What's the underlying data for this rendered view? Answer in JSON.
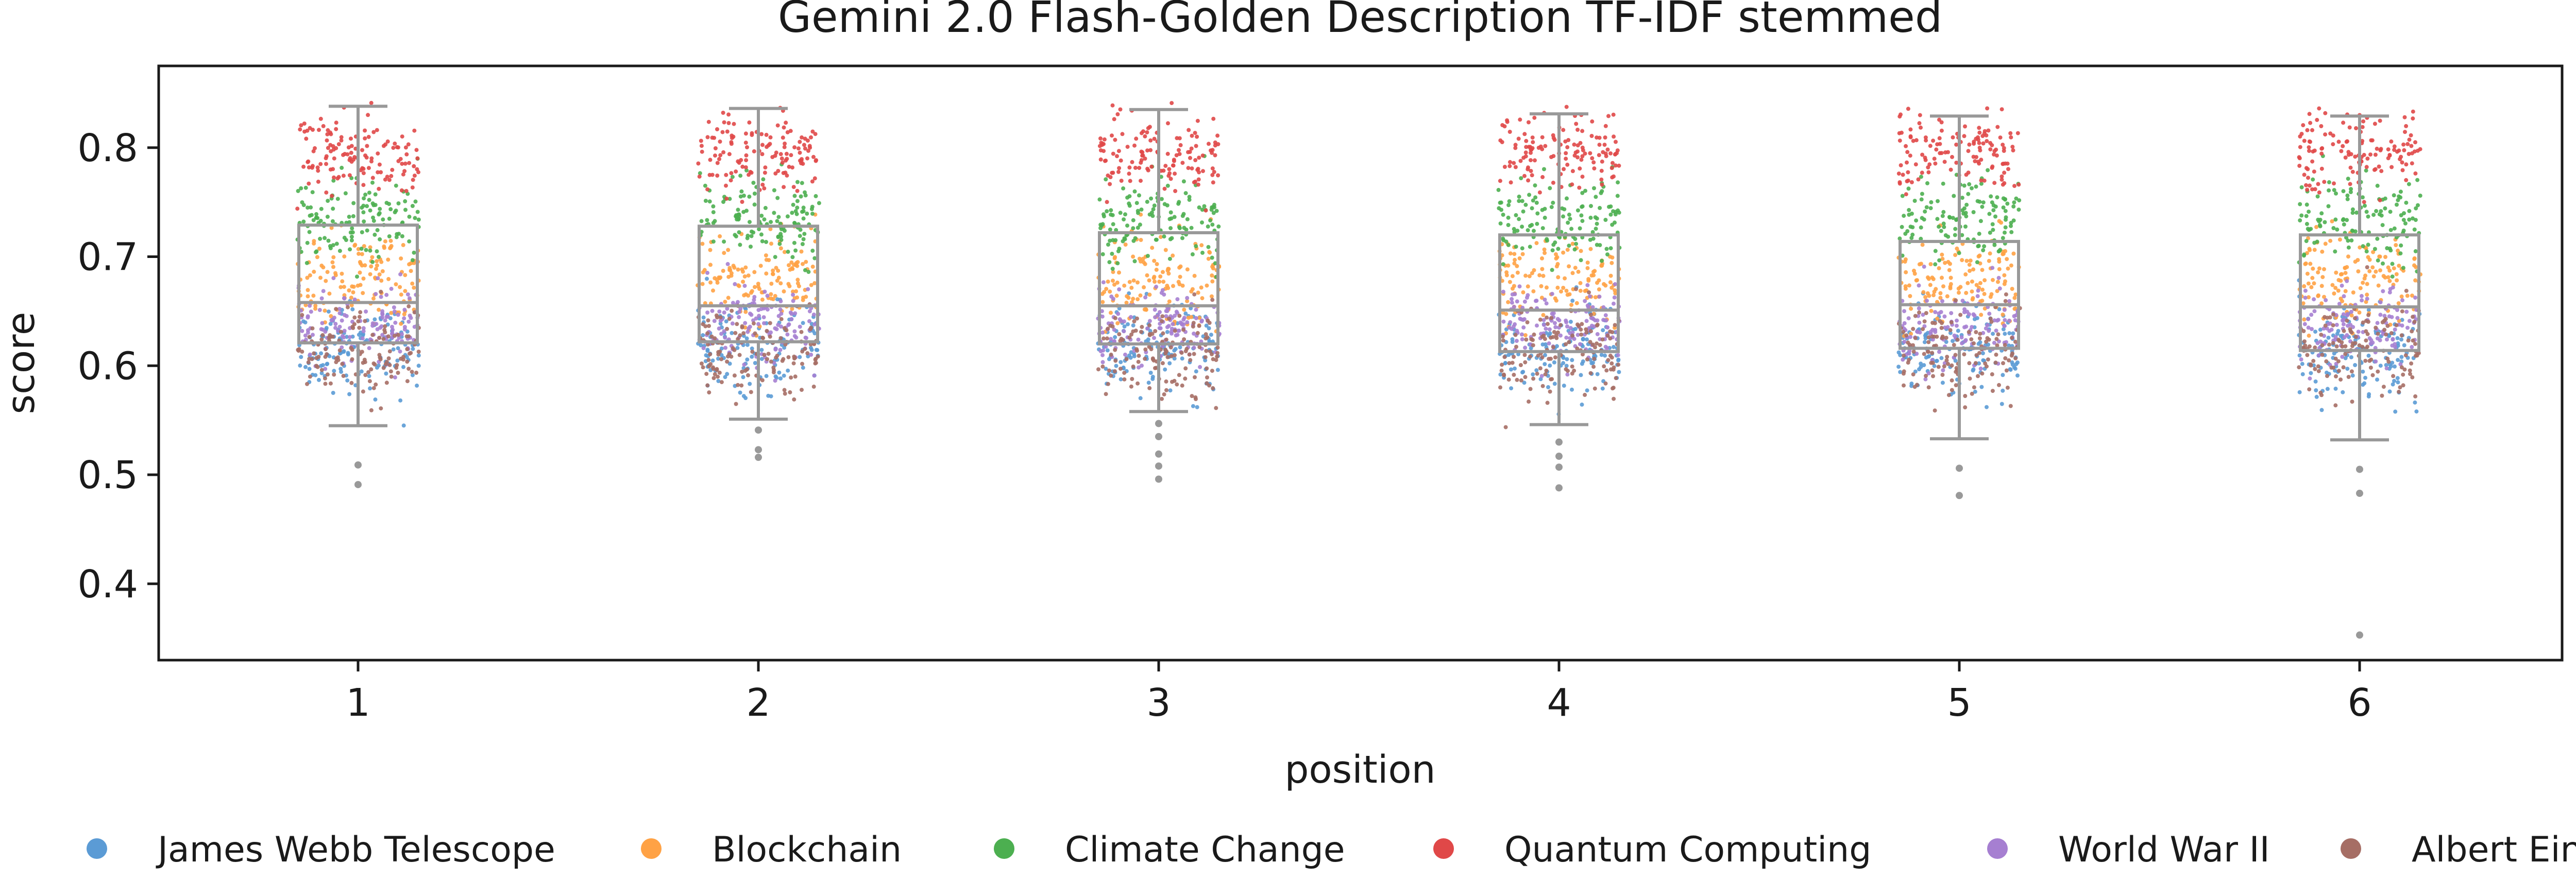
{
  "chart_data": {
    "type": "scatter",
    "subtype": "box-plot with jittered strip points",
    "title": "Gemini 2.0 Flash-Golden Description TF-IDF stemmed",
    "xlabel": "position",
    "ylabel": "score",
    "categories": [
      "1",
      "2",
      "3",
      "4",
      "5",
      "6"
    ],
    "ylim": [
      0.33,
      0.875
    ],
    "yticks": [
      "0.4",
      "0.5",
      "0.6",
      "0.7",
      "0.8"
    ],
    "grid": false,
    "legend_position": "bottom",
    "box_color": "#999999",
    "boxes": [
      {
        "position": "1",
        "whisker_low": 0.545,
        "q1": 0.621,
        "median": 0.658,
        "q3": 0.729,
        "whisker_high": 0.838,
        "outliers": [
          0.509,
          0.491
        ]
      },
      {
        "position": "2",
        "whisker_low": 0.551,
        "q1": 0.622,
        "median": 0.655,
        "q3": 0.728,
        "whisker_high": 0.836,
        "outliers": [
          0.541,
          0.523,
          0.516
        ]
      },
      {
        "position": "3",
        "whisker_low": 0.558,
        "q1": 0.62,
        "median": 0.655,
        "q3": 0.722,
        "whisker_high": 0.835,
        "outliers": [
          0.547,
          0.535,
          0.519,
          0.508,
          0.496
        ]
      },
      {
        "position": "4",
        "whisker_low": 0.546,
        "q1": 0.613,
        "median": 0.651,
        "q3": 0.72,
        "whisker_high": 0.831,
        "outliers": [
          0.53,
          0.517,
          0.507,
          0.488
        ]
      },
      {
        "position": "5",
        "whisker_low": 0.533,
        "q1": 0.616,
        "median": 0.656,
        "q3": 0.714,
        "whisker_high": 0.829,
        "outliers": [
          0.506,
          0.481
        ]
      },
      {
        "position": "6",
        "whisker_low": 0.532,
        "q1": 0.614,
        "median": 0.654,
        "q3": 0.72,
        "whisker_high": 0.829,
        "outliers": [
          0.505,
          0.483,
          0.353
        ]
      }
    ],
    "series": [
      {
        "name": "James Webb Telescope",
        "color": "#5b9bd5",
        "center": 0.615,
        "spread": 0.03
      },
      {
        "name": "Blockchain",
        "color": "#ffa245",
        "center": 0.68,
        "spread": 0.03
      },
      {
        "name": "Climate Change",
        "color": "#4caf50",
        "center": 0.735,
        "spread": 0.028
      },
      {
        "name": "Quantum Computing",
        "color": "#e04848",
        "center": 0.795,
        "spread": 0.025
      },
      {
        "name": "World War II",
        "color": "#a67fd1",
        "center": 0.638,
        "spread": 0.025
      },
      {
        "name": "Albert Einstein",
        "color": "#a66e65",
        "center": 0.612,
        "spread": 0.03
      }
    ]
  }
}
